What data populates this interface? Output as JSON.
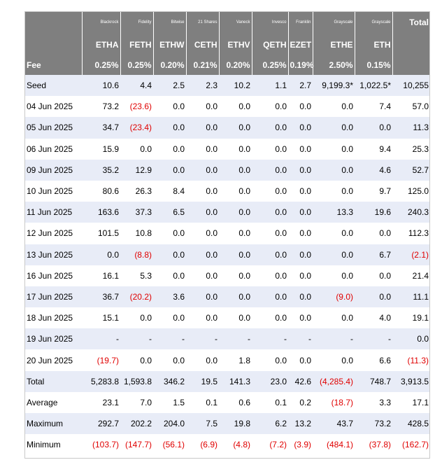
{
  "issuers": [
    "Blackrock",
    "Fidelity",
    "Bitwise",
    "21 Shares",
    "Vaneck",
    "Invesco",
    "Franklin",
    "Grayscale",
    "Grayscale"
  ],
  "total_label": "Total",
  "tickers": [
    "ETHA",
    "FETH",
    "ETHW",
    "CETH",
    "ETHV",
    "QETH",
    "EZET",
    "ETHE",
    "ETH"
  ],
  "fee_label": "Fee",
  "fees": [
    "0.25%",
    "0.25%",
    "0.20%",
    "0.21%",
    "0.20%",
    "0.25%",
    "0.19%",
    "2.50%",
    "0.15%"
  ],
  "rows": [
    {
      "label": "Seed",
      "cells": [
        "10.6",
        "4.4",
        "2.5",
        "2.3",
        "10.2",
        "1.1",
        "2.7",
        "9,199.3*",
        "1,022.5*",
        "10,255"
      ]
    },
    {
      "label": "04 Jun 2025",
      "cells": [
        "73.2",
        "(23.6)",
        "0.0",
        "0.0",
        "0.0",
        "0.0",
        "0.0",
        "0.0",
        "7.4",
        "57.0"
      ]
    },
    {
      "label": "05 Jun 2025",
      "cells": [
        "34.7",
        "(23.4)",
        "0.0",
        "0.0",
        "0.0",
        "0.0",
        "0.0",
        "0.0",
        "0.0",
        "11.3"
      ]
    },
    {
      "label": "06 Jun 2025",
      "cells": [
        "15.9",
        "0.0",
        "0.0",
        "0.0",
        "0.0",
        "0.0",
        "0.0",
        "0.0",
        "9.4",
        "25.3"
      ]
    },
    {
      "label": "09 Jun 2025",
      "cells": [
        "35.2",
        "12.9",
        "0.0",
        "0.0",
        "0.0",
        "0.0",
        "0.0",
        "0.0",
        "4.6",
        "52.7"
      ]
    },
    {
      "label": "10 Jun 2025",
      "cells": [
        "80.6",
        "26.3",
        "8.4",
        "0.0",
        "0.0",
        "0.0",
        "0.0",
        "0.0",
        "9.7",
        "125.0"
      ]
    },
    {
      "label": "11 Jun 2025",
      "cells": [
        "163.6",
        "37.3",
        "6.5",
        "0.0",
        "0.0",
        "0.0",
        "0.0",
        "13.3",
        "19.6",
        "240.3"
      ]
    },
    {
      "label": "12 Jun 2025",
      "cells": [
        "101.5",
        "10.8",
        "0.0",
        "0.0",
        "0.0",
        "0.0",
        "0.0",
        "0.0",
        "0.0",
        "112.3"
      ]
    },
    {
      "label": "13 Jun 2025",
      "cells": [
        "0.0",
        "(8.8)",
        "0.0",
        "0.0",
        "0.0",
        "0.0",
        "0.0",
        "0.0",
        "6.7",
        "(2.1)"
      ]
    },
    {
      "label": "16 Jun 2025",
      "cells": [
        "16.1",
        "5.3",
        "0.0",
        "0.0",
        "0.0",
        "0.0",
        "0.0",
        "0.0",
        "0.0",
        "21.4"
      ]
    },
    {
      "label": "17 Jun 2025",
      "cells": [
        "36.7",
        "(20.2)",
        "3.6",
        "0.0",
        "0.0",
        "0.0",
        "0.0",
        "(9.0)",
        "0.0",
        "11.1"
      ]
    },
    {
      "label": "18 Jun 2025",
      "cells": [
        "15.1",
        "0.0",
        "0.0",
        "0.0",
        "0.0",
        "0.0",
        "0.0",
        "0.0",
        "4.0",
        "19.1"
      ]
    },
    {
      "label": "19 Jun 2025",
      "cells": [
        "-",
        "-",
        "-",
        "-",
        "-",
        "-",
        "-",
        "-",
        "-",
        "0.0"
      ]
    },
    {
      "label": "20 Jun 2025",
      "cells": [
        "(19.7)",
        "0.0",
        "0.0",
        "0.0",
        "1.8",
        "0.0",
        "0.0",
        "0.0",
        "6.6",
        "(11.3)"
      ]
    },
    {
      "label": "Total",
      "cells": [
        "5,283.8",
        "1,593.8",
        "346.2",
        "19.5",
        "141.3",
        "23.0",
        "42.6",
        "(4,285.4)",
        "748.7",
        "3,913.5"
      ]
    },
    {
      "label": "Average",
      "cells": [
        "23.1",
        "7.0",
        "1.5",
        "0.1",
        "0.6",
        "0.1",
        "0.2",
        "(18.7)",
        "3.3",
        "17.1"
      ]
    },
    {
      "label": "Maximum",
      "cells": [
        "292.7",
        "202.2",
        "204.0",
        "7.5",
        "19.8",
        "6.2",
        "13.2",
        "43.7",
        "73.2",
        "428.5"
      ]
    },
    {
      "label": "Minimum",
      "cells": [
        "(103.7)",
        "(147.7)",
        "(56.1)",
        "(6.9)",
        "(4.8)",
        "(7.2)",
        "(3.9)",
        "(484.1)",
        "(37.8)",
        "(162.7)"
      ]
    }
  ],
  "colors": {
    "header_bg": "#7f7f7f",
    "row_shade": "#e8ecf7",
    "negative": "#e00000"
  }
}
